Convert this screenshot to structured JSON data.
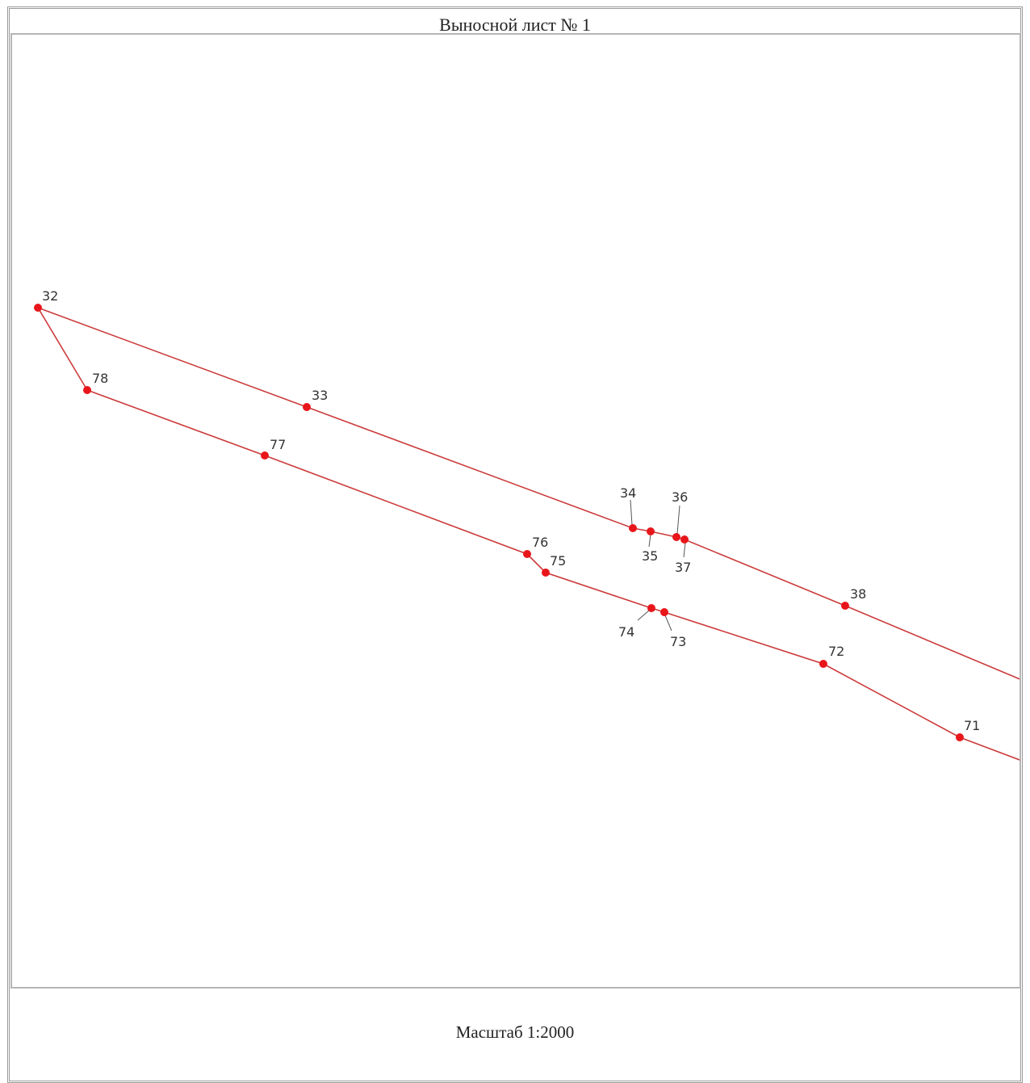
{
  "sheet": {
    "title": "Выносной лист № 1",
    "scale_label": "Масштаб 1:2000"
  },
  "colors": {
    "boundary_line": "#cc3b3b",
    "point": "#e8161b",
    "label": "#333333",
    "frame": "#b5b5b5"
  },
  "points": [
    {
      "id": "32"
    },
    {
      "id": "33"
    },
    {
      "id": "34"
    },
    {
      "id": "35"
    },
    {
      "id": "36"
    },
    {
      "id": "37"
    },
    {
      "id": "38"
    },
    {
      "id": "71"
    },
    {
      "id": "72"
    },
    {
      "id": "73"
    },
    {
      "id": "74"
    },
    {
      "id": "75"
    },
    {
      "id": "76"
    },
    {
      "id": "77"
    },
    {
      "id": "78"
    }
  ],
  "boundary_order": [
    "38",
    "37",
    "36",
    "35",
    "34",
    "33",
    "32",
    "78",
    "77",
    "76",
    "75",
    "74",
    "73",
    "72",
    "71"
  ]
}
